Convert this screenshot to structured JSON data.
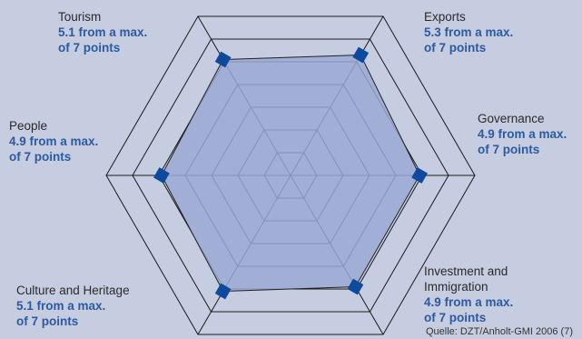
{
  "chart_data": {
    "type": "radar",
    "max": 7,
    "rings": 7,
    "axes": [
      {
        "name": "Tourism",
        "value": 5.1,
        "text": "5.1 from a max.",
        "text2": "of 7 points"
      },
      {
        "name": "Exports",
        "value": 5.3,
        "text": "5.3 from a max.",
        "text2": "of 7 points"
      },
      {
        "name": "Governance",
        "value": 4.9,
        "text": "4.9 from a max.",
        "text2": "of 7 points"
      },
      {
        "name": "Investment and",
        "name2": "Immigration",
        "value": 4.9,
        "text": "4.9 from a max.",
        "text2": "of 7 points"
      },
      {
        "name": "Culture and Heritage",
        "value": 5.1,
        "text": "5.1 from a max.",
        "text2": "of 7 points"
      },
      {
        "name": "People",
        "value": 4.9,
        "text": "4.9 from a max.",
        "text2": "of 7 points"
      }
    ],
    "source": "Quelle: DZT/Anholt-GMI 2006 (7)",
    "colors": {
      "background": "#c6cde0",
      "area_fill": "#9aa8d2",
      "marker": "#0d4a9e",
      "grid": "#1a1a1a"
    }
  }
}
